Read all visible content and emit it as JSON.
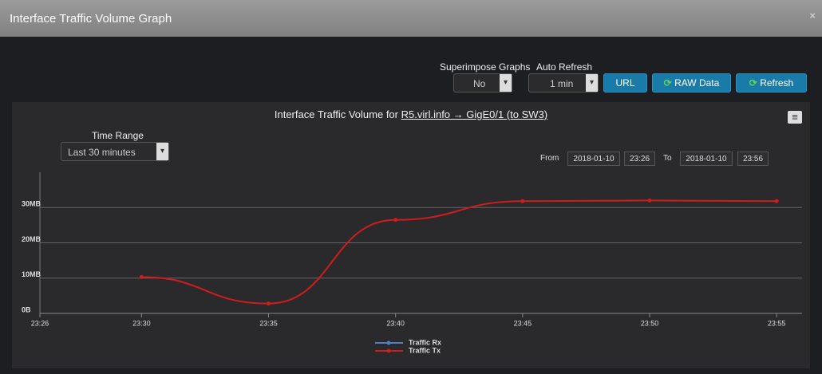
{
  "header": {
    "title": "Interface Traffic Volume Graph",
    "close": "×"
  },
  "controls": {
    "superimpose_label": "Superimpose Graphs",
    "superimpose_value": "No",
    "auto_refresh_label": "Auto Refresh",
    "auto_refresh_value": "1 min",
    "url_button": "URL",
    "raw_button": "RAW Data",
    "refresh_button": "Refresh"
  },
  "time_range": {
    "label": "Time Range",
    "value": "Last 30 minutes"
  },
  "range": {
    "from_label": "From",
    "from_date": "2018-01-10",
    "from_time": "23:26",
    "to_label": "To",
    "to_date": "2018-01-10",
    "to_time": "23:56"
  },
  "chart_data": {
    "type": "line",
    "title": "Interface Traffic Volume for",
    "title_link": "R5.virl.info → GigE0/1 (to SW3)",
    "x": [
      "23:30",
      "23:35",
      "23:40",
      "23:45",
      "23:50",
      "23:55"
    ],
    "xlim": [
      "23:26",
      "23:56"
    ],
    "xticks": [
      "23:26",
      "23:30",
      "23:35",
      "23:40",
      "23:45",
      "23:50",
      "23:55"
    ],
    "ylim": [
      0,
      40
    ],
    "yticks": [
      {
        "value": 0,
        "label": "0B"
      },
      {
        "value": 10,
        "label": "10MB"
      },
      {
        "value": 20,
        "label": "20MB"
      },
      {
        "value": 30,
        "label": "30MB"
      }
    ],
    "grid": true,
    "series": [
      {
        "name": "Traffic Rx",
        "color": "#4f7fc0",
        "values": [
          null,
          null,
          null,
          null,
          null,
          null
        ]
      },
      {
        "name": "Traffic Tx",
        "color": "#d01c1c",
        "values": [
          10.3,
          2.8,
          26.5,
          31.8,
          32.0,
          31.8
        ]
      }
    ]
  }
}
